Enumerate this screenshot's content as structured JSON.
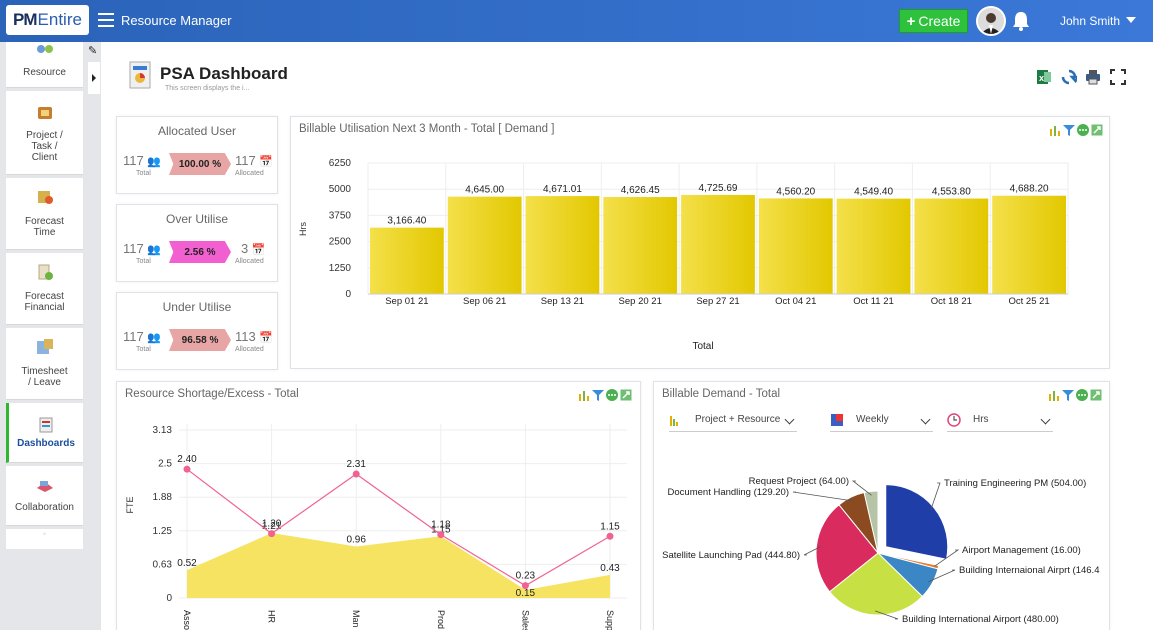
{
  "header": {
    "logo_pm": "PM",
    "logo_text": "Entire",
    "app_name": "Resource Manager",
    "create_label": "Create",
    "user_name": "John Smith"
  },
  "sidebar": {
    "items": [
      {
        "label": "Resource",
        "icon": "resource-icon"
      },
      {
        "label": "Project / Task / Client",
        "icon": "project-icon"
      },
      {
        "label": "Forecast Time",
        "icon": "forecast-time-icon"
      },
      {
        "label": "Forecast Financial",
        "icon": "forecast-financial-icon"
      },
      {
        "label": "Timesheet / Leave",
        "icon": "timesheet-icon"
      },
      {
        "label": "Dashboards",
        "icon": "dashboards-icon",
        "active": true
      },
      {
        "label": "Collaboration",
        "icon": "collaboration-icon"
      }
    ]
  },
  "page": {
    "title": "PSA Dashboard",
    "subtitle": "This screen displays the i..."
  },
  "kpis": [
    {
      "title": "Allocated User",
      "total": "117",
      "total_label": "Total",
      "percent": "100.00 %",
      "allocated": "117",
      "allocated_label": "Allocated",
      "color": "#e8a5a5"
    },
    {
      "title": "Over Utilise",
      "total": "117",
      "total_label": "Total",
      "percent": "2.56 %",
      "allocated": "3",
      "allocated_label": "Allocated",
      "color": "#f25fd0"
    },
    {
      "title": "Under Utilise",
      "total": "117",
      "total_label": "Total",
      "percent": "96.58 %",
      "allocated": "113",
      "allocated_label": "Allocated",
      "color": "#e8a5a5"
    }
  ],
  "panels": {
    "billable_util_title": "Billable Utilisation Next 3 Month - Total [ Demand ]",
    "shortage_title": "Resource Shortage/Excess - Total",
    "billable_demand_title": "Billable Demand - Total",
    "demand_selects": [
      {
        "label": "Project + Resource"
      },
      {
        "label": "Weekly"
      },
      {
        "label": "Hrs"
      }
    ]
  },
  "chart_data": [
    {
      "type": "bar",
      "title": "Billable Utilisation Next 3 Month - Total [ Demand ]",
      "categories": [
        "Sep 01 21",
        "Sep 06 21",
        "Sep 13 21",
        "Sep 20 21",
        "Sep 27 21",
        "Oct 04 21",
        "Oct 11 21",
        "Oct 18 21",
        "Oct 25 21"
      ],
      "values": [
        3166.4,
        4645.0,
        4671.01,
        4626.45,
        4725.69,
        4560.2,
        4549.4,
        4553.8,
        4688.2
      ],
      "value_labels": [
        "3,166.40",
        "4,645.00",
        "4,671.01",
        "4,626.45",
        "4,725.69",
        "4,560.20",
        "4,549.40",
        "4,553.80",
        "4,688.20"
      ],
      "yticks": [
        "0",
        "1250",
        "2500",
        "3750",
        "5000",
        "6250"
      ],
      "ylim": [
        0,
        6250
      ],
      "ylabel": "Hrs",
      "xlabel": "Total",
      "grid": true,
      "color": "#e2c800"
    },
    {
      "type": "line",
      "title": "Resource Shortage/Excess - Total",
      "categories": [
        "Asso",
        "HR",
        "Man",
        "Prod",
        "Sales",
        "Supp"
      ],
      "ylabel": "FTE",
      "ylim": [
        0,
        3.13
      ],
      "yticks": [
        "0",
        "0.63",
        "1.25",
        "1.88",
        "2.5",
        "3.13"
      ],
      "grid": true,
      "series": [
        {
          "type": "line",
          "color": "#f06292",
          "values": [
            2.4,
            1.2,
            2.31,
            1.18,
            0.23,
            1.15
          ],
          "labels": [
            "2.40",
            "1.20",
            "2.31",
            "1.18",
            "0.23",
            "1.15"
          ]
        },
        {
          "type": "area",
          "color": "#f5e15a",
          "values": [
            0.52,
            1.21,
            0.96,
            1.15,
            0.15,
            0.43
          ],
          "labels": [
            "0.52",
            "1.21",
            "0.96",
            "1.15",
            "0.15",
            "0.43"
          ]
        }
      ]
    },
    {
      "type": "pie",
      "title": "Billable Demand - Total",
      "slices": [
        {
          "label": "Training Engineering PM (504.00)",
          "value": 504.0,
          "color": "#1f3ea8",
          "explode": true
        },
        {
          "label": "Airport Management (16.00)",
          "value": 16.0,
          "color": "#e87e32"
        },
        {
          "label": "Building Internaional Airprt (146.4",
          "value": 146.4,
          "color": "#3b86c4"
        },
        {
          "label": "Building International Airport (480.00)",
          "value": 480.0,
          "color": "#c7e144"
        },
        {
          "label": "Satellite Launching  Pad (444.80)",
          "value": 444.8,
          "color": "#d92b5e"
        },
        {
          "label": "Document Handling (129.20)",
          "value": 129.2,
          "color": "#8b4a1f"
        },
        {
          "label": "Request Project (64.00)",
          "value": 64.0,
          "color": "#b6c4a6"
        }
      ]
    }
  ]
}
